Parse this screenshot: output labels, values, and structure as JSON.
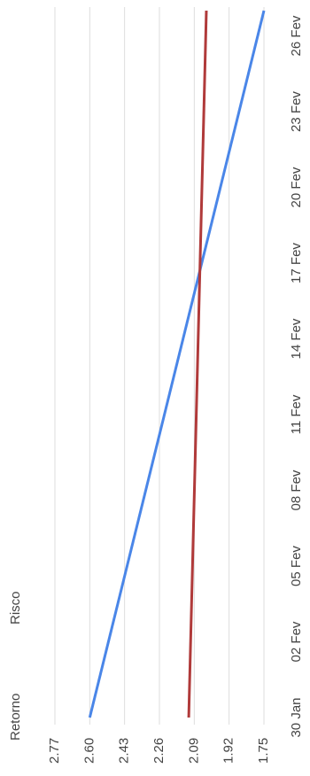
{
  "chart_data": {
    "type": "line",
    "x": [
      0,
      28
    ],
    "xlim": [
      0,
      28
    ],
    "xticks": [
      {
        "value": 0,
        "label": "30 Jan"
      },
      {
        "value": 3,
        "label": "02 Fev"
      },
      {
        "value": 6,
        "label": "05 Fev"
      },
      {
        "value": 9,
        "label": "08 Fev"
      },
      {
        "value": 12,
        "label": "11 Fev"
      },
      {
        "value": 15,
        "label": "14 Fev"
      },
      {
        "value": 18,
        "label": "17 Fev"
      },
      {
        "value": 21,
        "label": "20 Fev"
      },
      {
        "value": 24,
        "label": "23 Fev"
      },
      {
        "value": 27,
        "label": "26 Fev"
      }
    ],
    "ylim": [
      1.75,
      2.77
    ],
    "yticks": [
      2.77,
      2.6,
      2.43,
      2.26,
      2.09,
      1.92,
      1.75
    ],
    "ytick_labels": [
      "2.77",
      "2.60",
      "2.43",
      "2.26",
      "2.09",
      "1.92",
      "1.75"
    ],
    "grid": true,
    "series": [
      {
        "name": "Retorno",
        "color": "#4a86e8",
        "values": [
          2.6,
          1.75
        ]
      },
      {
        "name": "Risco",
        "color": "#b03a3a",
        "values": [
          2.117,
          2.031
        ]
      }
    ]
  }
}
